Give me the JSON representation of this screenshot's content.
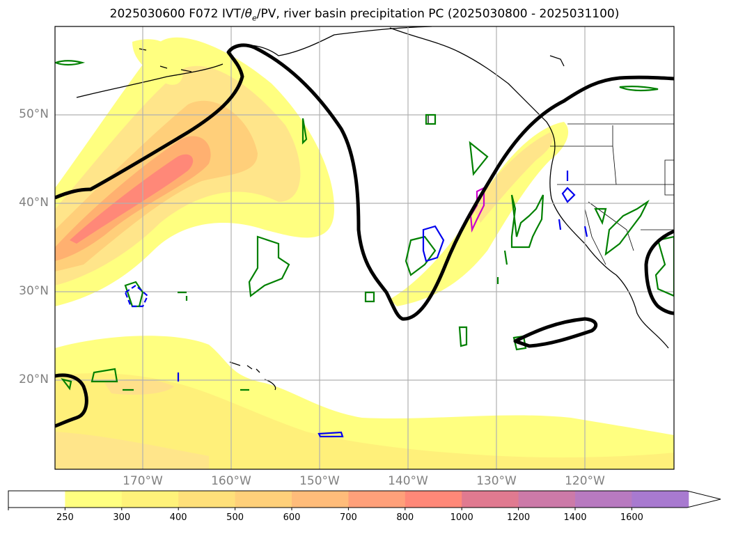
{
  "title": "2025030600 F072 IVT/θe/PV, river basin precipitation PC (2025030800 - 2025031100)",
  "title_parts": {
    "prefix": "2025030600 F072 IVT/",
    "theta": "θ",
    "sub": "e",
    "suffix": "/PV, river basin precipitation PC (2025030800 - 2025031100)"
  },
  "lat_labels": [
    "50°N",
    "40°N",
    "30°N",
    "20°N"
  ],
  "lon_labels": [
    "170°W",
    "160°W",
    "150°W",
    "140°W",
    "130°W",
    "120°W"
  ],
  "colorbar": {
    "ticks": [
      "250",
      "300",
      "400",
      "500",
      "600",
      "700",
      "800",
      "1000",
      "1200",
      "1400",
      "1600"
    ],
    "colors": [
      "#ffffff",
      "#ffff80",
      "#fff27a",
      "#ffe07a",
      "#ffd07a",
      "#ffbc7a",
      "#ffa07a",
      "#ff8878",
      "#e07a90",
      "#cc7aa8",
      "#b87ac0",
      "#a87ad0"
    ],
    "extend": "max"
  },
  "colors": {
    "ivt_light": "#ffff80",
    "ivt_mid": "#ffdd80",
    "ivt_high": "#ffb070",
    "ivt_core": "#ff8878",
    "pv_contour": "#000000",
    "green_contour": "#008000",
    "blue_contour": "#0000ee",
    "magenta_contour": "#cc00cc",
    "gridline": "#b0b0b0"
  }
}
